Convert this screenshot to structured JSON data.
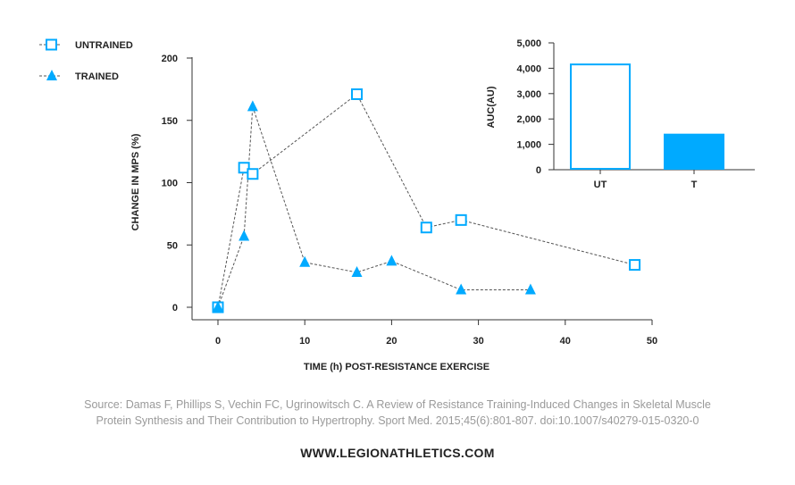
{
  "colors": {
    "accent": "#00aaff",
    "axis": "#333333",
    "connector": "#555555"
  },
  "chart_data": [
    {
      "type": "line",
      "title": "",
      "xlabel": "TIME (h) POST-RESISTANCE EXERCISE",
      "ylabel": "CHANGE IN MPS (%)",
      "xlim": [
        0,
        50
      ],
      "ylim": [
        0,
        200
      ],
      "xticks": [
        0,
        10,
        20,
        30,
        40,
        50
      ],
      "yticks": [
        0,
        50,
        100,
        150,
        200
      ],
      "grid": false,
      "legend_position": "top-left",
      "series": [
        {
          "name": "UNTRAINED",
          "marker": "open-square",
          "x": [
            0,
            3,
            4,
            16,
            24,
            28,
            48
          ],
          "y": [
            0,
            112,
            107,
            171,
            64,
            70,
            34
          ]
        },
        {
          "name": "TRAINED",
          "marker": "filled-triangle",
          "x": [
            0,
            3,
            4,
            10,
            16,
            20,
            28,
            36
          ],
          "y": [
            0,
            57,
            161,
            36,
            28,
            37,
            14,
            14
          ]
        }
      ]
    },
    {
      "type": "bar",
      "title": "",
      "xlabel": "",
      "ylabel": "AUC(AU)",
      "ylim": [
        0,
        5000
      ],
      "yticks": [
        0,
        1000,
        2000,
        3000,
        4000,
        5000
      ],
      "ytick_labels": [
        "0",
        "1,000",
        "2,000",
        "3,000",
        "4,000",
        "5,000"
      ],
      "categories": [
        "UT",
        "T"
      ],
      "values": [
        4150,
        1420
      ],
      "styles": [
        "outline",
        "filled"
      ]
    }
  ],
  "source_line1": "Source: Damas F, Phillips S, Vechin FC, Ugrinowitsch C. A Review of Resistance Training-Induced Changes in Skeletal Muscle",
  "source_line2": "Protein Synthesis and Their Contribution to Hypertrophy. Sport Med. 2015;45(6):801-807. doi:10.1007/s40279-015-0320-0",
  "website": "WWW.LEGIONATHLETICS.COM"
}
